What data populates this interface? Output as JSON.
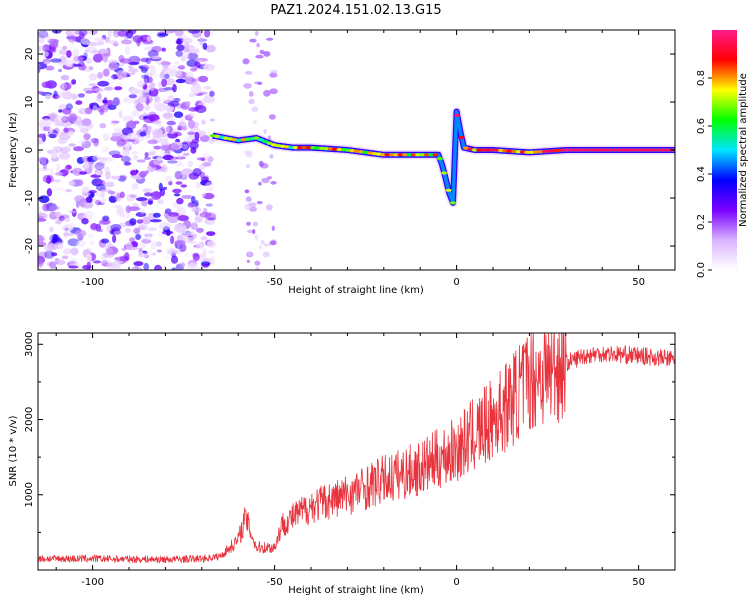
{
  "title": "PAZ1.2024.151.02.13.G15",
  "chart_data": [
    {
      "type": "heatmap",
      "name": "spectrogram",
      "xlabel": "Height of straight line (km)",
      "ylabel": "Frequency (Hz)",
      "xlim": [
        -115,
        60
      ],
      "ylim": [
        -25,
        25
      ],
      "xticks": [
        -100,
        -50,
        0,
        50
      ],
      "yticks": [
        -20,
        -10,
        0,
        10,
        20
      ],
      "colorbar": {
        "label": "Normalized spectral amplitude",
        "range": [
          0,
          1
        ],
        "ticks": [
          "0.0",
          "0.2",
          "0.4",
          "0.6",
          "0.8"
        ],
        "colors": [
          "#ffffff",
          "#d9b3ff",
          "#7a00ff",
          "#0000ff",
          "#00e5ff",
          "#00ff00",
          "#ffff00",
          "#ff0000",
          "#ff1a8c"
        ]
      },
      "noise_region_km": [
        -115,
        -67
      ],
      "signal_track": {
        "x": [
          -67,
          -60,
          -55,
          -50,
          -45,
          -40,
          -30,
          -20,
          -10,
          -5,
          -4,
          -3,
          -2,
          -1,
          0,
          1,
          2,
          5,
          10,
          20,
          30,
          40,
          50,
          60
        ],
        "freq": [
          3,
          2,
          2.5,
          1,
          0.5,
          0.5,
          0,
          -1,
          -1,
          -1,
          -3,
          -6,
          -9,
          -11,
          8,
          4,
          0.5,
          0,
          0,
          -0.5,
          0,
          0,
          0,
          0
        ]
      }
    },
    {
      "type": "line",
      "name": "snr",
      "xlabel": "Height of straight line (km)",
      "ylabel": "SNR (10 * v/v)",
      "xlim": [
        -115,
        60
      ],
      "ylim": [
        0,
        3150
      ],
      "xticks": [
        -100,
        -50,
        0,
        50
      ],
      "yticks": [
        1000,
        2000,
        3000
      ],
      "color": "#e8323c",
      "x": [
        -115,
        -100,
        -80,
        -70,
        -65,
        -60,
        -58,
        -55,
        -52,
        -50,
        -48,
        -45,
        -40,
        -30,
        -20,
        -10,
        0,
        5,
        10,
        15,
        20,
        25,
        30,
        35,
        40,
        50,
        60
      ],
      "values": [
        150,
        150,
        140,
        150,
        180,
        400,
        700,
        300,
        300,
        300,
        600,
        700,
        850,
        1000,
        1200,
        1350,
        1600,
        1800,
        2000,
        2250,
        2550,
        2650,
        2750,
        2850,
        2880,
        2850,
        2800
      ]
    }
  ]
}
